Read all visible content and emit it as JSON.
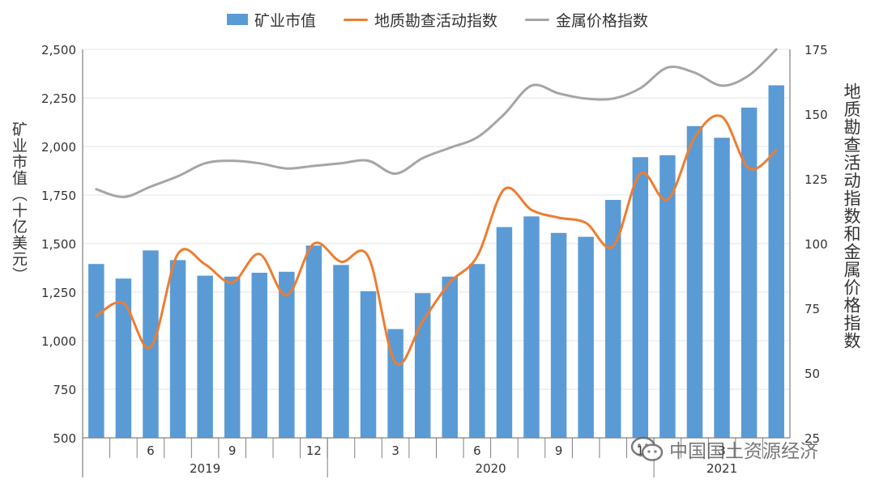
{
  "legend": {
    "market_value": "矿业市值",
    "exploration": "地质勘查活动指数",
    "metal_price": "金属价格指数"
  },
  "watermark": {
    "text": "中国国土资源经济",
    "icon": "wechat-icon"
  },
  "colors": {
    "bar": "#5b9bd5",
    "exploration": "#ed7d31",
    "metal_price": "#a5a5a5",
    "axis": "#808080",
    "grid": "#e3e3e3"
  },
  "chart_data": {
    "type": "bar",
    "title": "",
    "y_left_label": "矿业市值（十亿美元）",
    "y_right_label": "地质勘查活动指数和金属价格指数",
    "y_left_range": [
      500,
      2500
    ],
    "y_left_ticks": [
      "500",
      "750",
      "1,000",
      "1,250",
      "1,500",
      "1,750",
      "2,000",
      "2,250",
      "2,500"
    ],
    "y_right_range": [
      25,
      175
    ],
    "y_right_ticks": [
      "25",
      "50",
      "75",
      "100",
      "125",
      "150",
      "175"
    ],
    "x_tick_labels": [
      "",
      "",
      "6",
      "",
      "",
      "9",
      "",
      "",
      "12",
      "",
      "",
      "3",
      "",
      "",
      "6",
      "",
      "",
      "9",
      "",
      "",
      "1",
      "",
      "",
      "3",
      "",
      ""
    ],
    "years": [
      {
        "label": "2019",
        "start": 0,
        "end": 8
      },
      {
        "label": "2020",
        "start": 9,
        "end": 20
      },
      {
        "label": "2021",
        "start": 21,
        "end": 25
      }
    ],
    "grid": true,
    "legend_position": "top",
    "series": [
      {
        "name": "矿业市值",
        "kind": "bar",
        "axis": "left",
        "values": [
          1395,
          1320,
          1465,
          1415,
          1335,
          1330,
          1350,
          1355,
          1490,
          1390,
          1255,
          1060,
          1245,
          1330,
          1395,
          1585,
          1640,
          1555,
          1535,
          1725,
          1945,
          1955,
          2105,
          2045,
          2200,
          2315
        ]
      },
      {
        "name": "地质勘查活动指数",
        "kind": "line",
        "axis": "right",
        "values": [
          72,
          77,
          60,
          96,
          92,
          85,
          96,
          80,
          100,
          93,
          95,
          54,
          70,
          85,
          95,
          121,
          113,
          110,
          108,
          99,
          127,
          117,
          141,
          149,
          129,
          136
        ]
      },
      {
        "name": "金属价格指数",
        "kind": "line",
        "axis": "right",
        "values": [
          121,
          118,
          122,
          126,
          131,
          132,
          131,
          129,
          130,
          131,
          132,
          127,
          133,
          137,
          141,
          150,
          161,
          158,
          156,
          156,
          160,
          168,
          166,
          161,
          165,
          175
        ]
      }
    ]
  }
}
